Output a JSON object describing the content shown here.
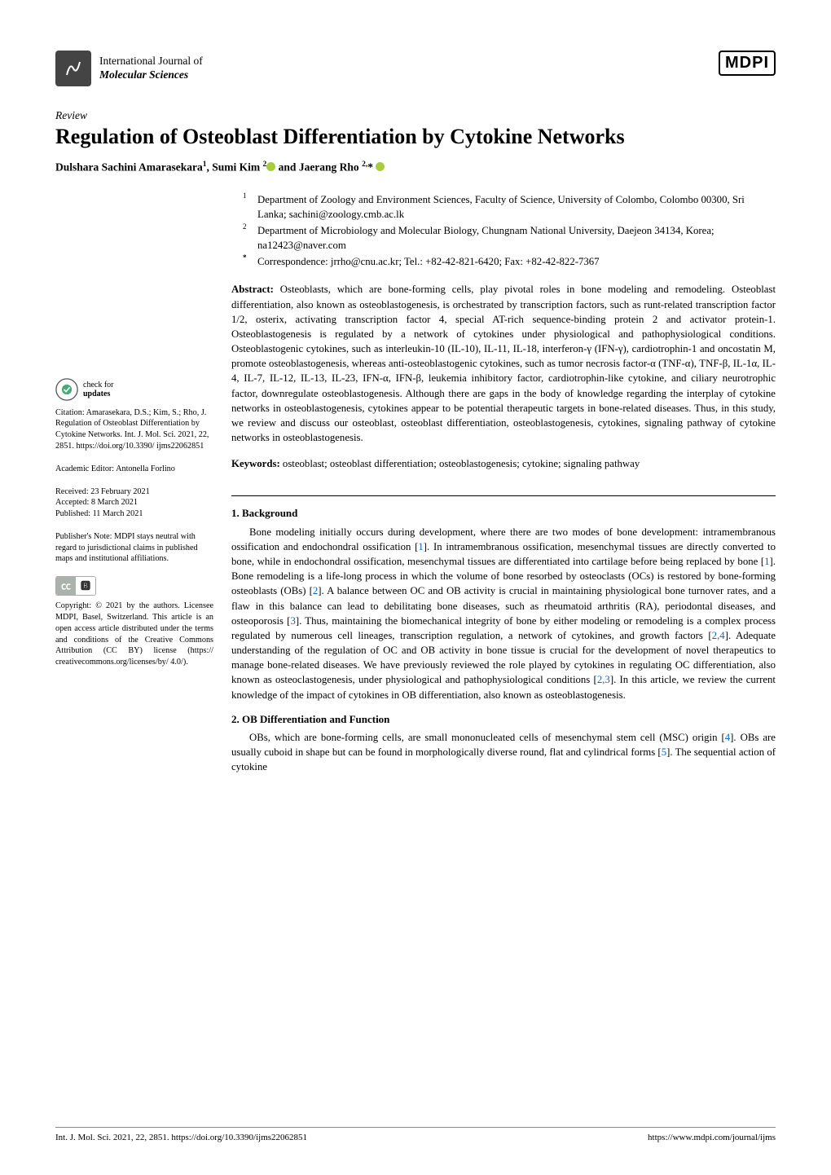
{
  "journal": {
    "line1": "International Journal of",
    "line2": "Molecular Sciences"
  },
  "publisher_logo": "MDPI",
  "article_type": "Review",
  "title": "Regulation of Osteoblast Differentiation by Cytokine Networks",
  "authors_html": "Dulshara Sachini Amarasekara ¹, Sumi Kim ² ⓘ and Jaerang Rho ²,* ⓘ",
  "authors": {
    "a1": "Dulshara Sachini Amarasekara",
    "a1_sup": "1",
    "a2": ", Sumi Kim",
    "a2_sup": "2",
    "a3": " and Jaerang Rho",
    "a3_sup": "2,"
  },
  "affiliations": {
    "n1": "1",
    "t1": "Department of Zoology and Environment Sciences, Faculty of Science, University of Colombo, Colombo 00300, Sri Lanka; sachini@zoology.cmb.ac.lk",
    "n2": "2",
    "t2": "Department of Microbiology and Molecular Biology, Chungnam National University, Daejeon 34134, Korea; na12423@naver.com",
    "n3": "*",
    "t3": "Correspondence: jrrho@cnu.ac.kr; Tel.: +82-42-821-6420; Fax: +82-42-822-7367"
  },
  "abstract": {
    "label": "Abstract:",
    "text": " Osteoblasts, which are bone-forming cells, play pivotal roles in bone modeling and remodeling. Osteoblast differentiation, also known as osteoblastogenesis, is orchestrated by transcription factors, such as runt-related transcription factor 1/2, osterix, activating transcription factor 4, special AT-rich sequence-binding protein 2 and activator protein-1. Osteoblastogenesis is regulated by a network of cytokines under physiological and pathophysiological conditions. Osteoblastogenic cytokines, such as interleukin-10 (IL-10), IL-11, IL-18, interferon-γ (IFN-γ), cardiotrophin-1 and oncostatin M, promote osteoblastogenesis, whereas anti-osteoblastogenic cytokines, such as tumor necrosis factor-α (TNF-α), TNF-β, IL-1α, IL-4, IL-7, IL-12, IL-13, IL-23, IFN-α, IFN-β, leukemia inhibitory factor, cardiotrophin-like cytokine, and ciliary neurotrophic factor, downregulate osteoblastogenesis. Although there are gaps in the body of knowledge regarding the interplay of cytokine networks in osteoblastogenesis, cytokines appear to be potential therapeutic targets in bone-related diseases. Thus, in this study, we review and discuss our osteoblast, osteoblast differentiation, osteoblastogenesis, cytokines, signaling pathway of cytokine networks in osteoblastogenesis."
  },
  "keywords": {
    "label": "Keywords:",
    "text": " osteoblast; osteoblast differentiation; osteoblastogenesis; cytokine; signaling pathway"
  },
  "section1": {
    "heading": "1. Background",
    "text": "Bone modeling initially occurs during development, where there are two modes of bone development: intramembranous ossification and endochondral ossification [1]. In intramembranous ossification, mesenchymal tissues are directly converted to bone, while in endochondral ossification, mesenchymal tissues are differentiated into cartilage before being replaced by bone [1]. Bone remodeling is a life-long process in which the volume of bone resorbed by osteoclasts (OCs) is restored by bone-forming osteoblasts (OBs) [2]. A balance between OC and OB activity is crucial in maintaining physiological bone turnover rates, and a flaw in this balance can lead to debilitating bone diseases, such as rheumatoid arthritis (RA), periodontal diseases, and osteoporosis [3]. Thus, maintaining the biomechanical integrity of bone by either modeling or remodeling is a complex process regulated by numerous cell lineages, transcription regulation, a network of cytokines, and growth factors [2,4]. Adequate understanding of the regulation of OC and OB activity in bone tissue is crucial for the development of novel therapeutics to manage bone-related diseases. We have previously reviewed the role played by cytokines in regulating OC differentiation, also known as osteoclastogenesis, under physiological and pathophysiological conditions [2,3]. In this article, we review the current knowledge of the impact of cytokines in OB differentiation, also known as osteoblastogenesis."
  },
  "section2": {
    "heading": "2. OB Differentiation and Function",
    "text": "OBs, which are bone-forming cells, are small mononucleated cells of mesenchymal stem cell (MSC) origin [4]. OBs are usually cuboid in shape but can be found in morphologically diverse round, flat and cylindrical forms [5]. The sequential action of cytokine"
  },
  "sidebar": {
    "check_line1": "check for",
    "check_line2": "updates",
    "citation": "Citation: Amarasekara, D.S.; Kim, S.; Rho, J. Regulation of Osteoblast Differentiation by Cytokine Networks. Int. J. Mol. Sci. 2021, 22, 2851. https://doi.org/10.3390/ ijms22062851",
    "editor": "Academic Editor: Antonella Forlino",
    "received": "Received: 23 February 2021",
    "accepted": "Accepted: 8 March 2021",
    "published": "Published: 11 March 2021",
    "publisher_note": "Publisher's Note: MDPI stays neutral with regard to jurisdictional claims in published maps and institutional affiliations.",
    "copyright": "Copyright: © 2021 by the authors. Licensee MDPI, Basel, Switzerland. This article is an open access article distributed under the terms and conditions of the Creative Commons Attribution (CC BY) license (https:// creativecommons.org/licenses/by/ 4.0/)."
  },
  "footer": {
    "left": "Int. J. Mol. Sci. 2021, 22, 2851. https://doi.org/10.3390/ijms22062851",
    "right": "https://www.mdpi.com/journal/ijms"
  },
  "colors": {
    "link": "#0066cc",
    "orcid": "#a6ce39",
    "text": "#000000",
    "bg": "#ffffff"
  }
}
